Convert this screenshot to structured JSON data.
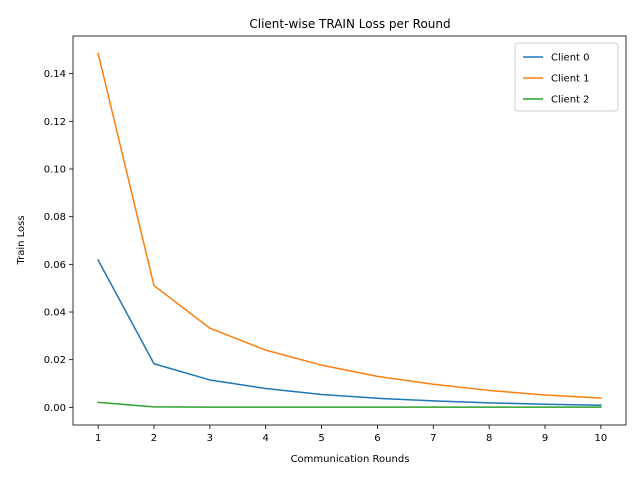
{
  "chart_data": {
    "type": "line",
    "title": "Client-wise TRAIN Loss per Round",
    "xlabel": "Communication Rounds",
    "ylabel": "Train Loss",
    "x": [
      1,
      2,
      3,
      4,
      5,
      6,
      7,
      8,
      9,
      10
    ],
    "x_ticks": [
      "1",
      "2",
      "3",
      "4",
      "5",
      "6",
      "7",
      "8",
      "9",
      "10"
    ],
    "y_ticks": [
      "0.00",
      "0.02",
      "0.04",
      "0.06",
      "0.08",
      "0.10",
      "0.12",
      "0.14"
    ],
    "xlim": [
      0.55,
      10.45
    ],
    "ylim": [
      -0.0074,
      0.1558
    ],
    "grid": false,
    "legend_position": "top-right",
    "series": [
      {
        "name": "Client 0",
        "color": "#1f77b4",
        "values": [
          0.0618,
          0.0183,
          0.0115,
          0.0079,
          0.0054,
          0.0038,
          0.0027,
          0.0019,
          0.0013,
          0.0009
        ]
      },
      {
        "name": "Client 1",
        "color": "#ff7f0e",
        "values": [
          0.1485,
          0.0511,
          0.0332,
          0.024,
          0.0177,
          0.013,
          0.0097,
          0.0071,
          0.0052,
          0.0039
        ]
      },
      {
        "name": "Client 2",
        "color": "#2ca02c",
        "values": [
          0.0021,
          0.0002,
          0.0001,
          0.0001,
          0.0001,
          0.0001,
          0.0001,
          0.0001,
          0.0001,
          0.0001
        ]
      }
    ]
  }
}
